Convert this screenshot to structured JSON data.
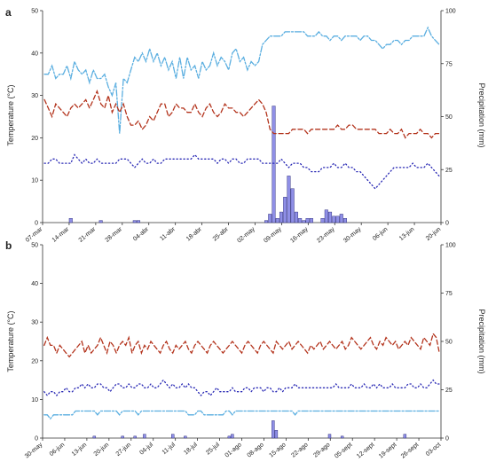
{
  "chart_data": [
    {
      "type": "bar+line",
      "panel_label": "a",
      "y_left_label": "Temperature (°C)",
      "y_right_label": "Precipitation (mm)",
      "ylim_left": [
        0,
        50
      ],
      "ylim_right": [
        0,
        100
      ],
      "y_left_ticks": [
        "0",
        "10",
        "20",
        "30",
        "40",
        "50"
      ],
      "y_right_ticks": [
        "0",
        "25",
        "50",
        "75",
        "100"
      ],
      "x_ticks": [
        "07-mar",
        "14-mar",
        "21-mar",
        "28-mar",
        "04-abr",
        "11-abr",
        "18-abr",
        "25-abr",
        "02-may",
        "09-may",
        "16-may",
        "23-may",
        "30-may",
        "06-jun",
        "13-jun",
        "20-jun"
      ],
      "n_days": 106,
      "series": [
        {
          "type": "line",
          "style": "dash-dot",
          "color": "#5aaee0",
          "values": [
            35,
            35,
            37,
            34,
            35,
            35,
            37,
            34,
            38,
            36,
            35,
            36,
            33,
            36,
            34,
            34,
            35,
            32,
            30,
            33,
            21,
            34,
            33,
            36,
            39,
            38,
            40,
            38,
            41,
            38,
            40,
            37,
            39,
            36,
            38,
            34,
            39,
            34,
            39,
            36,
            37,
            34,
            38,
            36,
            37,
            40,
            37,
            39,
            38,
            36,
            40,
            41,
            38,
            39,
            36,
            38,
            37,
            38,
            42,
            43,
            44,
            44,
            44,
            44,
            45,
            45,
            45,
            45,
            45,
            45,
            44,
            44,
            44,
            45,
            44,
            44,
            43,
            44,
            44,
            43,
            44,
            44,
            44,
            44,
            43,
            44,
            44,
            43,
            43,
            42,
            41,
            42,
            42,
            43,
            43,
            42,
            43,
            43,
            44,
            44,
            44,
            44,
            46,
            44,
            43,
            42
          ]
        },
        {
          "type": "line",
          "style": "dashed",
          "color": "#b3331c",
          "values": [
            29,
            27,
            25,
            28,
            27,
            26,
            25,
            27,
            28,
            27,
            28,
            29,
            27,
            29,
            31,
            28,
            27,
            30,
            26,
            28,
            26,
            28,
            25,
            23,
            23,
            24,
            22,
            23,
            25,
            24,
            26,
            28,
            28,
            25,
            26,
            28,
            27,
            27,
            26,
            26,
            28,
            26,
            25,
            27,
            28,
            26,
            25,
            26,
            28,
            27,
            27,
            26,
            26,
            25,
            26,
            27,
            28,
            29,
            28,
            26,
            22,
            21,
            21,
            21,
            21,
            21,
            22,
            22,
            22,
            22,
            21,
            22,
            22,
            22,
            22,
            22,
            22,
            22,
            23,
            22,
            22,
            23,
            23,
            22,
            22,
            22,
            22,
            22,
            22,
            21,
            21,
            21,
            22,
            21,
            21,
            22,
            20,
            21,
            21,
            21,
            22,
            21,
            21,
            20,
            21,
            21
          ]
        },
        {
          "type": "line",
          "style": "dotted",
          "color": "#2a2ab5",
          "values": [
            14,
            14,
            15,
            15,
            14,
            14,
            14,
            14,
            16,
            15,
            14,
            15,
            14,
            14,
            15,
            14,
            14,
            14,
            14,
            14,
            15,
            15,
            15,
            14,
            13,
            14,
            15,
            14,
            14,
            15,
            14,
            14,
            15,
            15,
            15,
            15,
            15,
            15,
            15,
            15,
            16,
            15,
            15,
            15,
            15,
            15,
            14,
            15,
            15,
            14,
            15,
            15,
            14,
            14,
            15,
            15,
            15,
            15,
            14,
            14,
            14,
            14,
            14,
            15,
            14,
            13,
            14,
            14,
            14,
            13,
            13,
            12,
            12,
            12,
            13,
            13,
            13,
            14,
            13,
            13,
            14,
            13,
            13,
            12,
            12,
            11,
            10,
            9,
            8,
            9,
            10,
            11,
            12,
            13,
            13,
            13,
            13,
            13,
            14,
            13,
            13,
            13,
            14,
            13,
            12,
            11
          ]
        },
        {
          "type": "bar",
          "color": "#8f8fe6",
          "axis": "right",
          "values": [
            0,
            0,
            0,
            0,
            0,
            0,
            0,
            2,
            0,
            0,
            0,
            0,
            0,
            0,
            0,
            1,
            0,
            0,
            0,
            0,
            0,
            0,
            0,
            0,
            1,
            1,
            0,
            0,
            0,
            0,
            0,
            0,
            0,
            0,
            0,
            0,
            0,
            0,
            0,
            0,
            0,
            0,
            0,
            0,
            0,
            0,
            0,
            0,
            0,
            0,
            0,
            0,
            0,
            0,
            0,
            0,
            0,
            0,
            0,
            1,
            4,
            55,
            2,
            5,
            12,
            22,
            16,
            5,
            2,
            1,
            2,
            2,
            0,
            0,
            2,
            6,
            5,
            3,
            3,
            4,
            2,
            0,
            0,
            0,
            0,
            0,
            0,
            0,
            0,
            0,
            0,
            0,
            0,
            0,
            0,
            0,
            0,
            0,
            0,
            0,
            0,
            0,
            0,
            0,
            0,
            0
          ]
        }
      ]
    },
    {
      "type": "bar+line",
      "panel_label": "b",
      "y_left_label": "Temperature (°C)",
      "y_right_label": "Precipitation (mm)",
      "ylim_left": [
        0,
        50
      ],
      "ylim_right": [
        0,
        100
      ],
      "y_left_ticks": [
        "0",
        "10",
        "20",
        "30",
        "40",
        "50"
      ],
      "y_right_ticks": [
        "0",
        "25",
        "50",
        "75",
        "100"
      ],
      "x_ticks": [
        "30-may",
        "06-jun",
        "13-jun",
        "20-jun",
        "27-jun",
        "04-jul",
        "11-jul",
        "18-jul",
        "25-jul",
        "01-ago",
        "08-ago",
        "15-ago",
        "22-ago",
        "29-ago",
        "05-sept",
        "12-sept",
        "19-sept",
        "26-sept",
        "03-oct"
      ],
      "n_days": 127,
      "series": [
        {
          "type": "line",
          "style": "dash-dot",
          "color": "#5aaee0",
          "values": [
            6,
            6,
            5,
            6,
            6,
            6,
            6,
            6,
            6,
            6,
            7,
            7,
            7,
            7,
            7,
            7,
            7,
            6,
            7,
            7,
            7,
            7,
            7,
            7,
            6,
            7,
            7,
            7,
            7,
            7,
            6,
            7,
            7,
            7,
            7,
            7,
            7,
            7,
            7,
            7,
            7,
            7,
            7,
            7,
            7,
            7,
            6,
            6,
            6,
            7,
            7,
            6,
            6,
            6,
            6,
            6,
            6,
            6,
            7,
            7,
            6,
            7,
            7,
            7,
            7,
            7,
            7,
            7,
            7,
            7,
            7,
            7,
            7,
            7,
            7,
            7,
            7,
            7,
            7,
            7,
            6,
            7,
            7,
            7,
            7,
            7,
            7,
            7,
            7,
            7,
            7,
            7,
            7,
            7,
            7,
            7,
            7,
            7,
            7,
            7,
            7,
            7,
            7,
            7,
            7,
            7,
            7,
            7,
            7,
            7,
            7,
            7,
            7,
            7,
            7,
            7,
            7,
            7,
            7,
            7,
            7,
            7,
            7,
            7,
            7,
            7,
            7
          ]
        },
        {
          "type": "line",
          "style": "dashed",
          "color": "#b3331c",
          "values": [
            24,
            26,
            24,
            24,
            22,
            24,
            23,
            22,
            21,
            22,
            23,
            24,
            25,
            22,
            24,
            22,
            23,
            24,
            26,
            24,
            22,
            25,
            24,
            22,
            24,
            25,
            24,
            26,
            22,
            24,
            25,
            22,
            24,
            23,
            25,
            24,
            23,
            22,
            24,
            25,
            23,
            22,
            24,
            23,
            24,
            25,
            23,
            22,
            24,
            25,
            24,
            23,
            22,
            24,
            25,
            24,
            23,
            22,
            23,
            24,
            25,
            24,
            23,
            22,
            24,
            25,
            24,
            23,
            22,
            24,
            25,
            24,
            23,
            22,
            25,
            24,
            23,
            24,
            25,
            23,
            24,
            25,
            24,
            23,
            22,
            24,
            23,
            24,
            25,
            23,
            24,
            25,
            24,
            23,
            24,
            25,
            23,
            24,
            26,
            25,
            24,
            23,
            24,
            25,
            26,
            24,
            23,
            25,
            24,
            26,
            25,
            24,
            25,
            23,
            24,
            25,
            24,
            26,
            25,
            24,
            23,
            26,
            25,
            24,
            27,
            26,
            22
          ]
        },
        {
          "type": "line",
          "style": "dotted",
          "color": "#2a2ab5",
          "values": [
            12,
            11,
            12,
            12,
            11,
            12,
            12,
            13,
            12,
            12,
            13,
            13,
            14,
            13,
            14,
            13,
            13,
            14,
            14,
            13,
            13,
            12,
            13,
            14,
            14,
            13,
            13,
            14,
            13,
            13,
            14,
            14,
            13,
            13,
            14,
            13,
            13,
            14,
            15,
            14,
            13,
            14,
            13,
            13,
            14,
            13,
            14,
            13,
            13,
            12,
            11,
            12,
            12,
            11,
            12,
            13,
            12,
            12,
            12,
            12,
            13,
            12,
            12,
            12,
            13,
            13,
            12,
            13,
            13,
            13,
            12,
            13,
            13,
            12,
            12,
            13,
            12,
            13,
            13,
            13,
            14,
            13,
            13,
            13,
            13,
            13,
            13,
            13,
            13,
            13,
            13,
            13,
            13,
            14,
            13,
            13,
            13,
            13,
            14,
            13,
            13,
            13,
            14,
            13,
            13,
            14,
            13,
            14,
            13,
            13,
            13,
            14,
            13,
            13,
            13,
            13,
            14,
            14,
            13,
            13,
            14,
            13,
            13,
            14,
            15,
            14,
            14
          ]
        },
        {
          "type": "bar",
          "color": "#8f8fe6",
          "axis": "right",
          "values": [
            0,
            0,
            0,
            0,
            0,
            0,
            0,
            0,
            0,
            0,
            0,
            0,
            0,
            0,
            0,
            0,
            1,
            0,
            0,
            0,
            0,
            0,
            0,
            0,
            0,
            1,
            0,
            0,
            0,
            1,
            0,
            0,
            2,
            0,
            0,
            0,
            0,
            0,
            0,
            0,
            0,
            2,
            0,
            0,
            0,
            1,
            0,
            0,
            0,
            0,
            0,
            0,
            0,
            0,
            0,
            0,
            0,
            0,
            0,
            1,
            2,
            0,
            0,
            0,
            0,
            0,
            0,
            0,
            0,
            0,
            0,
            0,
            0,
            9,
            4,
            0,
            0,
            0,
            0,
            0,
            0,
            0,
            0,
            0,
            0,
            0,
            0,
            0,
            0,
            0,
            0,
            2,
            0,
            0,
            0,
            1,
            0,
            0,
            0,
            0,
            0,
            0,
            0,
            0,
            0,
            0,
            0,
            0,
            0,
            0,
            0,
            0,
            0,
            0,
            0,
            2,
            0,
            0,
            0,
            0,
            0,
            0,
            0,
            0,
            0,
            0,
            0
          ]
        }
      ]
    }
  ]
}
